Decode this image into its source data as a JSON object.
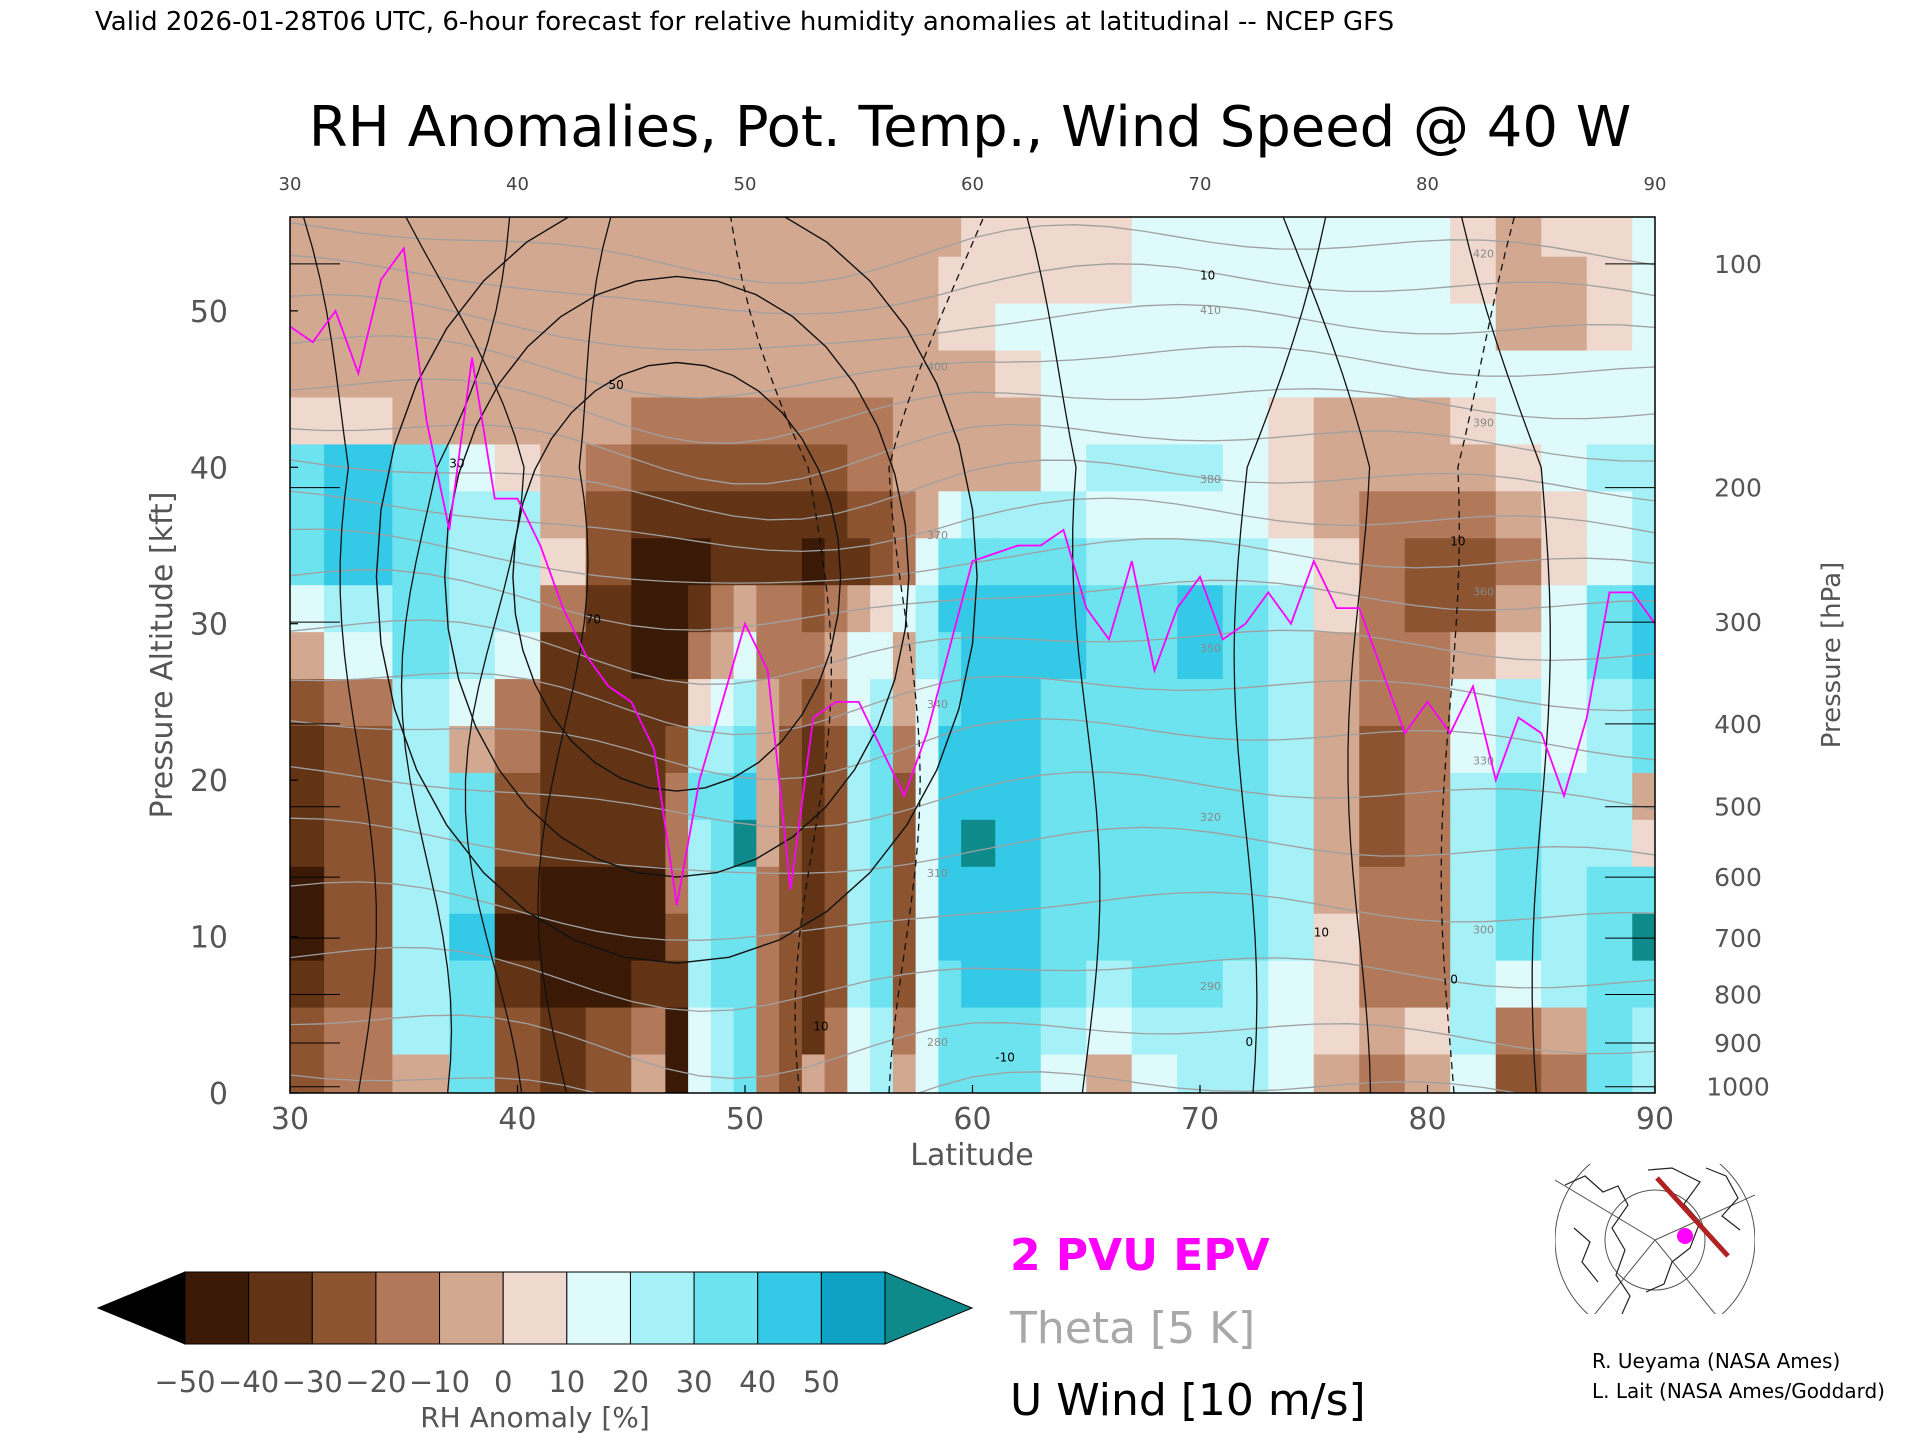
{
  "header": {
    "valid_line": "Valid 2026-01-28T06 UTC, 6-hour forecast for relative humidity anomalies at latitudinal -- NCEP GFS"
  },
  "chart_data": {
    "type": "heatmap",
    "title": "RH Anomalies, Pot. Temp., Wind Speed @ 40 W",
    "xlabel": "Latitude",
    "ylabel": "Pressure Altitude [kft]",
    "y2label": "Pressure [hPa]",
    "xlim": [
      30,
      90
    ],
    "ylim": [
      0,
      56
    ],
    "x_ticks": [
      "30",
      "40",
      "50",
      "60",
      "70",
      "80",
      "90"
    ],
    "x_top_ticks": [
      "30",
      "40",
      "50",
      "60",
      "70",
      "80",
      "90"
    ],
    "y_ticks": [
      "0",
      "10",
      "20",
      "30",
      "40",
      "50"
    ],
    "pressure_ticks": [
      {
        "label": "100",
        "kft": 53.0
      },
      {
        "label": "200",
        "kft": 38.7
      },
      {
        "label": "300",
        "kft": 30.1
      },
      {
        "label": "400",
        "kft": 23.6
      },
      {
        "label": "500",
        "kft": 18.3
      },
      {
        "label": "600",
        "kft": 13.8
      },
      {
        "label": "700",
        "kft": 9.9
      },
      {
        "label": "800",
        "kft": 6.3
      },
      {
        "label": "900",
        "kft": 3.2
      },
      {
        "label": "1000",
        "kft": 0.4
      }
    ],
    "rh_anomaly_grid": {
      "lat": [
        30,
        33,
        36,
        38,
        40,
        42,
        44,
        46,
        47,
        48,
        49,
        50,
        51,
        52,
        53,
        54,
        55,
        56,
        57,
        58,
        59,
        60,
        62,
        64,
        66,
        68,
        70,
        72,
        74,
        76,
        78,
        80,
        82,
        84,
        86,
        88,
        90
      ],
      "kft": [
        1,
        4,
        7,
        10,
        13,
        16,
        19,
        22,
        25,
        28,
        31,
        34,
        37,
        40,
        43,
        46,
        49,
        52,
        55
      ],
      "values": [
        [
          -30,
          -20,
          -10,
          30,
          -30,
          -40,
          -30,
          -10,
          -45,
          10,
          20,
          30,
          -20,
          -30,
          -10,
          -20,
          10,
          20,
          -10,
          10,
          30,
          30,
          30,
          10,
          -5,
          10,
          20,
          20,
          10,
          -10,
          -20,
          -10,
          10,
          -30,
          -20,
          30,
          20
        ],
        [
          -30,
          -20,
          20,
          30,
          -30,
          -40,
          -30,
          -20,
          -45,
          10,
          20,
          30,
          -20,
          -30,
          -40,
          -20,
          10,
          20,
          -20,
          10,
          30,
          35,
          35,
          20,
          10,
          20,
          20,
          20,
          10,
          0,
          -10,
          0,
          20,
          -20,
          -10,
          30,
          20
        ],
        [
          -35,
          -30,
          20,
          30,
          -40,
          -50,
          -50,
          -40,
          -40,
          20,
          30,
          30,
          -20,
          -30,
          -40,
          -30,
          20,
          30,
          -30,
          10,
          35,
          40,
          40,
          30,
          20,
          30,
          30,
          20,
          10,
          0,
          -20,
          -20,
          20,
          10,
          20,
          30,
          30
        ],
        [
          -50,
          -30,
          20,
          40,
          -50,
          -50,
          -50,
          -50,
          -30,
          20,
          30,
          30,
          -20,
          -30,
          -40,
          -30,
          20,
          30,
          -30,
          10,
          40,
          40,
          40,
          30,
          30,
          30,
          30,
          30,
          20,
          0,
          -20,
          -20,
          20,
          30,
          20,
          30,
          50
        ],
        [
          -50,
          -30,
          20,
          30,
          -40,
          -50,
          -50,
          -50,
          -20,
          20,
          30,
          30,
          -20,
          -30,
          -40,
          -30,
          20,
          30,
          -30,
          10,
          40,
          40,
          40,
          30,
          30,
          30,
          30,
          30,
          20,
          -10,
          -20,
          -20,
          20,
          30,
          20,
          30,
          30
        ],
        [
          -40,
          -30,
          20,
          30,
          -30,
          -40,
          -40,
          -40,
          -20,
          20,
          30,
          50,
          -10,
          -30,
          -40,
          -30,
          20,
          30,
          -30,
          10,
          40,
          50,
          40,
          30,
          30,
          30,
          30,
          30,
          20,
          -10,
          -30,
          -20,
          20,
          30,
          20,
          20,
          0
        ],
        [
          -40,
          -30,
          20,
          30,
          -30,
          -40,
          -40,
          -40,
          -20,
          30,
          30,
          40,
          -10,
          -30,
          -40,
          -30,
          20,
          30,
          -30,
          10,
          40,
          40,
          40,
          30,
          30,
          30,
          30,
          30,
          20,
          -10,
          -30,
          -20,
          20,
          30,
          20,
          20,
          -10
        ],
        [
          -40,
          -30,
          20,
          -10,
          -20,
          -40,
          -40,
          -40,
          -30,
          20,
          20,
          30,
          -10,
          -30,
          -40,
          -30,
          20,
          30,
          -20,
          10,
          40,
          40,
          40,
          30,
          30,
          30,
          30,
          30,
          20,
          -10,
          -30,
          -20,
          10,
          20,
          10,
          20,
          30
        ],
        [
          -30,
          -20,
          20,
          10,
          -20,
          -40,
          -40,
          -40,
          -40,
          0,
          10,
          20,
          -10,
          -20,
          -30,
          -20,
          10,
          20,
          -10,
          10,
          30,
          40,
          40,
          30,
          30,
          30,
          30,
          30,
          20,
          -10,
          -20,
          -20,
          10,
          20,
          10,
          20,
          30
        ],
        [
          -10,
          10,
          30,
          20,
          10,
          -40,
          -40,
          -50,
          -50,
          -20,
          -10,
          10,
          -20,
          -20,
          -20,
          -10,
          10,
          10,
          -10,
          20,
          30,
          40,
          40,
          40,
          30,
          30,
          40,
          30,
          20,
          -10,
          -20,
          -20,
          -10,
          0,
          10,
          30,
          40
        ],
        [
          10,
          20,
          30,
          20,
          20,
          -20,
          -40,
          -50,
          -50,
          -40,
          -20,
          -10,
          -20,
          -20,
          -30,
          -20,
          -10,
          0,
          10,
          20,
          40,
          40,
          40,
          40,
          30,
          30,
          40,
          30,
          20,
          0,
          -20,
          -30,
          -30,
          -10,
          10,
          30,
          40
        ],
        [
          30,
          40,
          30,
          20,
          20,
          0,
          -30,
          -50,
          -50,
          -50,
          -40,
          -40,
          -40,
          -40,
          -50,
          -40,
          -40,
          -30,
          -20,
          10,
          30,
          30,
          30,
          30,
          20,
          20,
          20,
          20,
          10,
          0,
          -20,
          -30,
          -30,
          -20,
          0,
          10,
          20
        ],
        [
          30,
          40,
          30,
          20,
          20,
          -10,
          -30,
          -40,
          -40,
          -40,
          -40,
          -40,
          -40,
          -40,
          -40,
          -40,
          -30,
          -30,
          -20,
          -10,
          10,
          20,
          20,
          20,
          10,
          10,
          10,
          10,
          0,
          -10,
          -20,
          -20,
          -20,
          -10,
          0,
          10,
          20
        ],
        [
          30,
          40,
          30,
          10,
          0,
          -10,
          -20,
          -30,
          -30,
          -30,
          -30,
          -30,
          -30,
          -30,
          -30,
          -30,
          -20,
          -20,
          -10,
          -10,
          -10,
          -10,
          -10,
          10,
          20,
          20,
          20,
          10,
          0,
          -10,
          -10,
          -10,
          -10,
          0,
          10,
          20,
          20
        ],
        [
          0,
          0,
          -10,
          -10,
          -10,
          -10,
          -10,
          -20,
          -20,
          -20,
          -20,
          -20,
          -20,
          -20,
          -20,
          -20,
          -20,
          -20,
          -10,
          -10,
          -10,
          -10,
          -10,
          10,
          10,
          10,
          10,
          10,
          0,
          -10,
          -10,
          -10,
          0,
          10,
          10,
          10,
          10
        ],
        [
          -5,
          -5,
          -10,
          -10,
          -10,
          -10,
          -10,
          -10,
          -10,
          -10,
          -10,
          -10,
          -10,
          -10,
          -10,
          -10,
          -10,
          -10,
          -10,
          -10,
          -10,
          -10,
          0,
          10,
          10,
          10,
          10,
          10,
          10,
          10,
          10,
          10,
          10,
          10,
          10,
          10,
          10
        ],
        [
          -5,
          -10,
          -10,
          -10,
          -10,
          -10,
          -10,
          -10,
          -10,
          -10,
          -10,
          -10,
          -10,
          -10,
          -10,
          -10,
          -10,
          -10,
          -5,
          -5,
          0,
          5,
          10,
          10,
          10,
          10,
          10,
          10,
          10,
          10,
          10,
          10,
          10,
          -5,
          -5,
          5,
          10
        ],
        [
          -5,
          -10,
          -10,
          -10,
          -10,
          -10,
          -10,
          -10,
          -10,
          -10,
          -10,
          -10,
          -10,
          -10,
          -10,
          -10,
          -10,
          -10,
          -5,
          -5,
          0,
          5,
          5,
          5,
          5,
          10,
          10,
          10,
          10,
          10,
          10,
          10,
          0,
          -5,
          -5,
          5,
          10
        ],
        [
          -5,
          -10,
          -10,
          -10,
          -10,
          -10,
          -10,
          -10,
          -10,
          -10,
          -10,
          -10,
          -10,
          -10,
          -10,
          -10,
          -10,
          -10,
          -5,
          -5,
          -5,
          0,
          5,
          5,
          5,
          10,
          10,
          10,
          10,
          10,
          10,
          10,
          0,
          -5,
          0,
          5,
          10
        ]
      ]
    },
    "theta_contours": {
      "interval_K": 5,
      "range_K": [
        270,
        420
      ],
      "labels": [
        "280",
        "290",
        "300",
        "310",
        "320",
        "330",
        "340",
        "350",
        "360",
        "370",
        "380",
        "390",
        "400",
        "410",
        "420"
      ]
    },
    "u_wind_contours": {
      "interval": 10,
      "units": "m/s",
      "labels": [
        "-10",
        "0",
        "10",
        "30",
        "50",
        "70"
      ],
      "jet_core": {
        "lat": 47,
        "kft": 33,
        "speed": 70
      }
    },
    "epv_2pvu_line": {
      "lat": [
        30,
        31,
        32,
        33,
        34,
        35,
        36,
        37,
        38,
        39,
        40,
        41,
        42,
        43,
        44,
        45,
        46,
        47,
        48,
        50,
        51,
        52,
        53,
        54,
        55,
        56,
        57,
        58,
        60,
        62,
        63,
        64,
        65,
        66,
        67,
        68,
        69,
        70,
        71,
        72,
        73,
        74,
        75,
        76,
        77,
        78,
        79,
        80,
        81,
        82,
        83,
        84,
        85,
        86,
        87,
        88,
        89,
        90
      ],
      "kft": [
        49,
        48,
        50,
        46,
        52,
        54,
        43,
        36,
        47,
        38,
        38,
        35,
        31,
        28,
        26,
        25,
        22,
        12,
        20,
        30,
        27,
        13,
        24,
        25,
        25,
        22,
        19,
        23,
        34,
        35,
        35,
        36,
        31,
        29,
        34,
        27,
        31,
        33,
        29,
        30,
        32,
        30,
        34,
        31,
        31,
        27,
        23,
        25,
        23,
        26,
        20,
        24,
        23,
        19,
        24,
        32,
        32,
        30
      ]
    },
    "colorbar": {
      "label": "RH Anomaly [%]",
      "tick_labels": [
        "−50",
        "−40",
        "−30",
        "−20",
        "−10",
        "0",
        "10",
        "20",
        "30",
        "40",
        "50"
      ],
      "levels": [
        -50,
        -40,
        -30,
        -20,
        -10,
        0,
        10,
        20,
        30,
        40,
        50
      ],
      "colors": [
        "#000000",
        "#3a1a07",
        "#623415",
        "#8c5430",
        "#b2785a",
        "#d3a891",
        "#efd8cd",
        "#dffafb",
        "#a6f0f7",
        "#6ee3f0",
        "#34cae7",
        "#0ea2c4",
        "#0e8a8a"
      ]
    },
    "legend": {
      "epv": {
        "label": "2 PVU EPV",
        "color": "#ff00ff"
      },
      "theta": {
        "label": "Theta [5 K]",
        "color": "#a8a8a8"
      },
      "uwind": {
        "label": "U Wind [10 m/s]",
        "color": "#000000"
      }
    },
    "section_line_color": "#b22222",
    "point_marker_color": "#ff00ff"
  },
  "credits": {
    "line1": "R. Ueyama (NASA Ames)",
    "line2": "L. Lait (NASA Ames/Goddard)"
  }
}
